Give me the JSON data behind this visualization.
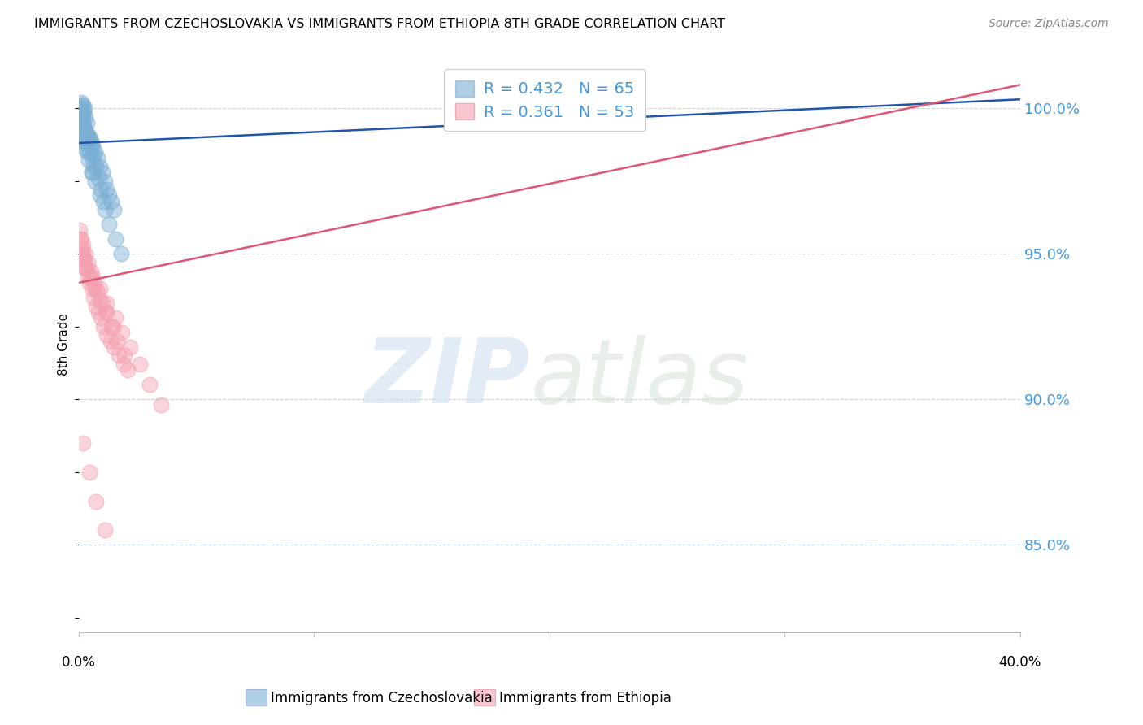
{
  "title": "IMMIGRANTS FROM CZECHOSLOVAKIA VS IMMIGRANTS FROM ETHIOPIA 8TH GRADE CORRELATION CHART",
  "source": "Source: ZipAtlas.com",
  "ylabel": "8th Grade",
  "y_ticks": [
    85.0,
    90.0,
    95.0,
    100.0
  ],
  "y_tick_labels": [
    "85.0%",
    "90.0%",
    "95.0%",
    "100.0%"
  ],
  "x_min": 0.0,
  "x_max": 40.0,
  "y_min": 82.0,
  "y_max": 101.8,
  "blue_color": "#7BAFD4",
  "pink_color": "#F4A0B0",
  "blue_line_color": "#2255AA",
  "pink_line_color": "#E05575",
  "legend_label_blue": "Immigrants from Czechoslovakia",
  "legend_label_pink": "Immigrants from Ethiopia",
  "blue_trend_x": [
    0.0,
    40.0
  ],
  "blue_trend_y": [
    98.8,
    100.3
  ],
  "pink_trend_x": [
    0.0,
    40.0
  ],
  "pink_trend_y": [
    94.0,
    100.8
  ],
  "blue_scatter_x": [
    0.05,
    0.08,
    0.1,
    0.12,
    0.15,
    0.18,
    0.2,
    0.22,
    0.25,
    0.28,
    0.1,
    0.15,
    0.2,
    0.25,
    0.3,
    0.35,
    0.4,
    0.45,
    0.5,
    0.55,
    0.6,
    0.7,
    0.8,
    0.9,
    1.0,
    1.1,
    1.2,
    1.3,
    1.4,
    1.5,
    0.05,
    0.08,
    0.12,
    0.18,
    0.22,
    0.3,
    0.38,
    0.45,
    0.55,
    0.65,
    0.1,
    0.2,
    0.3,
    0.4,
    0.52,
    0.62,
    0.75,
    0.85,
    0.95,
    1.05,
    0.15,
    0.25,
    0.35,
    0.55,
    0.7,
    0.9,
    1.1,
    1.3,
    1.55,
    1.8,
    0.08,
    0.18,
    0.28,
    0.42,
    0.58
  ],
  "blue_scatter_y": [
    100.0,
    100.1,
    99.9,
    100.2,
    100.0,
    99.8,
    100.1,
    99.9,
    100.0,
    99.7,
    99.5,
    99.6,
    99.4,
    99.3,
    99.2,
    99.5,
    99.1,
    99.0,
    98.9,
    98.8,
    98.7,
    98.5,
    98.3,
    98.0,
    97.8,
    97.5,
    97.2,
    97.0,
    96.8,
    96.5,
    99.8,
    99.9,
    99.7,
    99.5,
    99.3,
    99.0,
    98.8,
    98.5,
    98.3,
    98.0,
    99.6,
    99.4,
    99.2,
    99.0,
    98.7,
    98.4,
    98.0,
    97.6,
    97.2,
    96.8,
    99.0,
    98.8,
    98.5,
    97.8,
    97.5,
    97.0,
    96.5,
    96.0,
    95.5,
    95.0,
    99.2,
    98.9,
    98.6,
    98.2,
    97.8
  ],
  "pink_scatter_x": [
    0.05,
    0.1,
    0.15,
    0.2,
    0.25,
    0.3,
    0.38,
    0.45,
    0.55,
    0.65,
    0.75,
    0.85,
    0.95,
    1.05,
    1.2,
    1.35,
    1.5,
    1.7,
    1.9,
    2.1,
    0.08,
    0.18,
    0.28,
    0.4,
    0.52,
    0.68,
    0.82,
    1.0,
    1.2,
    1.45,
    0.12,
    0.22,
    0.35,
    0.5,
    0.7,
    0.92,
    1.15,
    1.4,
    1.65,
    1.95,
    0.3,
    0.6,
    0.9,
    1.2,
    1.55,
    1.85,
    2.2,
    2.6,
    3.0,
    3.5,
    0.2,
    0.45,
    0.75,
    1.1
  ],
  "pink_scatter_y": [
    95.8,
    95.5,
    95.2,
    95.0,
    94.8,
    94.5,
    94.2,
    94.0,
    93.8,
    93.5,
    93.2,
    93.0,
    92.8,
    92.5,
    92.2,
    92.0,
    91.8,
    91.5,
    91.2,
    91.0,
    95.5,
    95.3,
    95.0,
    94.7,
    94.4,
    94.0,
    93.7,
    93.3,
    93.0,
    92.5,
    95.0,
    94.8,
    94.5,
    94.2,
    93.8,
    93.4,
    93.0,
    92.5,
    92.0,
    91.5,
    94.5,
    94.2,
    93.8,
    93.3,
    92.8,
    92.3,
    91.8,
    91.2,
    90.5,
    89.8,
    88.5,
    87.5,
    86.5,
    85.5
  ]
}
